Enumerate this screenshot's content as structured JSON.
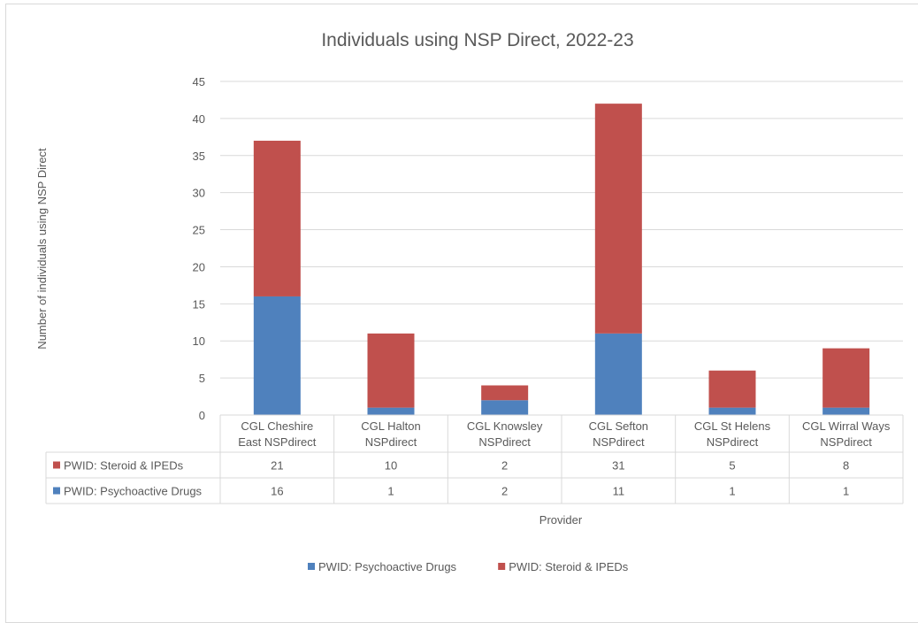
{
  "chart_data": {
    "type": "bar",
    "stacked": true,
    "title": "Individuals using NSP Direct, 2022-23",
    "xlabel": "Provider",
    "ylabel": "Number of individuals using NSP Direct",
    "ylim": [
      0,
      45
    ],
    "yticks": [
      0,
      5,
      10,
      15,
      20,
      25,
      30,
      35,
      40,
      45
    ],
    "grid": true,
    "legend": "bottom",
    "data_table": true,
    "categories": [
      [
        "CGL Cheshire",
        "East NSPdirect"
      ],
      [
        "CGL Halton",
        "NSPdirect"
      ],
      [
        "CGL Knowsley",
        "NSPdirect"
      ],
      [
        "CGL Sefton",
        "NSPdirect"
      ],
      [
        "CGL St Helens",
        "NSPdirect"
      ],
      [
        "CGL Wirral Ways",
        "NSPdirect"
      ]
    ],
    "series": [
      {
        "name": "PWID: Psychoactive Drugs",
        "color": "#4f81bd",
        "values": [
          16,
          1,
          2,
          11,
          1,
          1
        ]
      },
      {
        "name": "PWID: Steroid & IPEDs",
        "color": "#c0504d",
        "values": [
          21,
          10,
          2,
          31,
          5,
          8
        ]
      }
    ]
  }
}
